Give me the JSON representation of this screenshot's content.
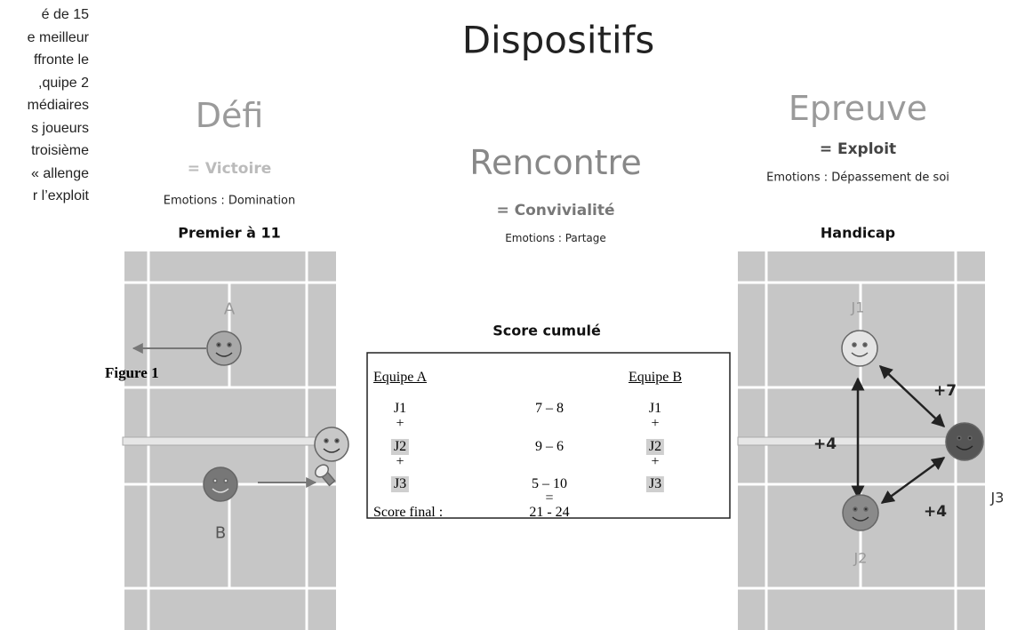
{
  "body_text": [
    "é de 15",
    "e meilleur",
    "ffronte le",
    "quipe 2,",
    "médiaires",
    "s joueurs",
    "troisième",
    "allenge »",
    "r l’exploit"
  ],
  "figure_label": "Figure 1",
  "title": "Dispositifs",
  "columns": [
    {
      "heading": "Défi",
      "value": "= Victoire",
      "emotions": "Emotions : Domination",
      "format": "Premier à 11"
    },
    {
      "heading": "Rencontre",
      "value": "= Convivialité",
      "emotions": "Emotions : Partage",
      "format": "Score cumulé"
    },
    {
      "heading": "Epreuve",
      "value": "= Exploit",
      "emotions": "Emotions : Dépassement de soi",
      "format": "Handicap"
    }
  ],
  "court_left": {
    "player_a": "A",
    "player_b": "B"
  },
  "court_right": {
    "j1": "J1",
    "j2": "J2",
    "j3": "J3",
    "h13": "+7",
    "h12": "+4",
    "h23": "+4"
  },
  "table": {
    "team_a": "Equipe A",
    "team_b": "Equipe B",
    "rows": [
      {
        "a": "J1",
        "score": "7 – 8",
        "b": "J1"
      },
      {
        "a": "+",
        "b": "+"
      },
      {
        "a": "J2",
        "score": "9 – 6",
        "b": "J2"
      },
      {
        "a": "+",
        "b": "+"
      },
      {
        "a": "J3",
        "score": "5 – 10",
        "b": "J3"
      },
      {
        "score": "="
      },
      {
        "a": "Score final :",
        "score": "21 - 24"
      }
    ]
  }
}
